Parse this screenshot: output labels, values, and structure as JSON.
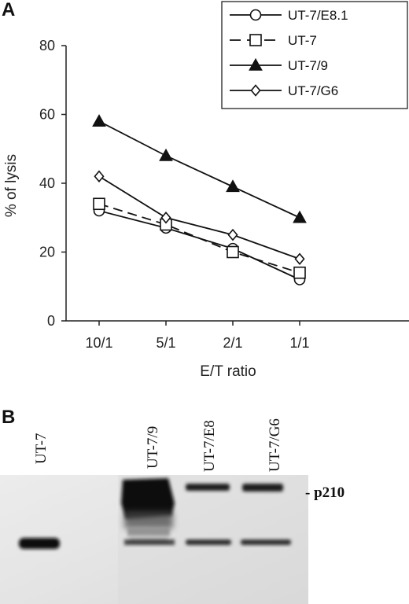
{
  "panel_a_label": "A",
  "panel_b_label": "B",
  "chart_data": {
    "type": "line",
    "xlabel": "E/T ratio",
    "ylabel": "% of lysis",
    "categories": [
      "10/1",
      "5/1",
      "2/1",
      "1/1"
    ],
    "ylim": [
      0,
      80
    ],
    "yticks": [
      0,
      20,
      40,
      60,
      80
    ],
    "grid": false,
    "legend": "top-right",
    "series": [
      {
        "name": "UT-7/E8.1",
        "values": [
          32,
          27,
          21,
          12
        ],
        "marker": "circle",
        "dash": "solid",
        "color": "#111111"
      },
      {
        "name": "UT-7",
        "values": [
          34,
          28,
          20,
          14
        ],
        "marker": "square",
        "dash": "dashed",
        "color": "#111111"
      },
      {
        "name": "UT-7/9",
        "values": [
          58,
          48,
          39,
          30
        ],
        "marker": "triangle",
        "dash": "solid",
        "color": "#111111"
      },
      {
        "name": "UT-7/G6",
        "values": [
          42,
          30,
          25,
          18
        ],
        "marker": "diamond",
        "dash": "solid",
        "color": "#111111"
      }
    ]
  },
  "blot": {
    "lanes": [
      "UT-7",
      "UT-7/9",
      "UT-7/E8",
      "UT-7/G6"
    ],
    "band_label": "- p210"
  }
}
